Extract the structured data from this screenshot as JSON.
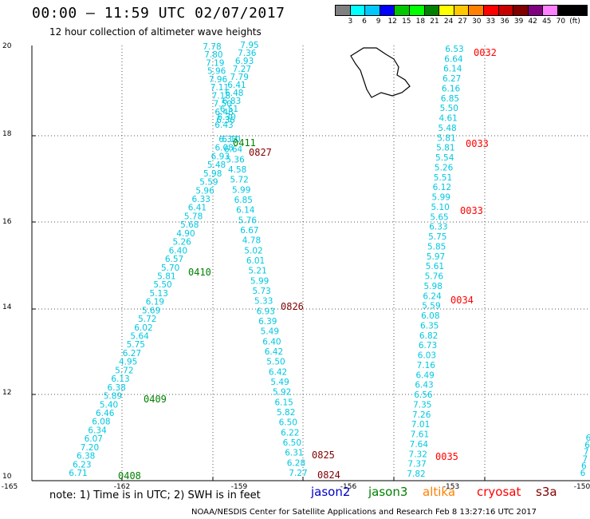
{
  "title": "00:00 – 11:59 UTC 02/07/2017",
  "subtitle": "12 hour collection of altimeter wave heights",
  "legend": {
    "unit": "(ft)",
    "levels": [
      "3",
      "6",
      "9",
      "12",
      "15",
      "18",
      "21",
      "24",
      "27",
      "30",
      "33",
      "36",
      "39",
      "42",
      "45",
      "70"
    ],
    "colors": [
      "#808080",
      "#00ffff",
      "#00c8ff",
      "#0000ff",
      "#00c800",
      "#00ff00",
      "#008000",
      "#ffff00",
      "#ffc800",
      "#ff8000",
      "#ff0000",
      "#c80000",
      "#800000",
      "#800080",
      "#ff80ff",
      "#000000",
      "#000000"
    ]
  },
  "axes": {
    "lon_labels": [
      "-165",
      "-162",
      "-159",
      "-156",
      "-153",
      "-150"
    ],
    "lat_labels": [
      "10",
      "12",
      "14",
      "16",
      "18",
      "20"
    ]
  },
  "colors": {
    "swh": "#00c8e0",
    "jason2": "#0000c8",
    "jason3": "#008000",
    "altika": "#ff8000",
    "cryosat": "#ff0000",
    "s3a": "#800000"
  },
  "tracks": [
    {
      "name": "track-a",
      "values": [
        "6.71",
        "6.23",
        "6.38",
        "7.20",
        "6.07",
        "6.34",
        "6.08",
        "6.46",
        "5.40",
        "5.89",
        "6.38",
        "6.13",
        "5.72",
        "4.95",
        "6.27",
        "5.75",
        "5.64",
        "6.02",
        "5.72",
        "5.69",
        "6.19",
        "5.13",
        "5.50",
        "5.81",
        "5.70",
        "6.57",
        "6.40",
        "5.26",
        "4.90",
        "5.68",
        "5.78",
        "6.41",
        "6.33",
        "5.96",
        "5.59",
        "5.98",
        "5.48",
        "6.93",
        "6.08",
        "6.33"
      ]
    },
    {
      "name": "track-b",
      "values": [
        "7.27",
        "6.28",
        "6.31",
        "6.50",
        "6.22",
        "6.50",
        "5.82",
        "6.15",
        "5.92",
        "5.49",
        "6.42",
        "5.50",
        "6.42",
        "6.40",
        "5.49",
        "6.39",
        "6.93",
        "5.33",
        "5.73",
        "5.99",
        "5.21",
        "6.01",
        "5.02",
        "4.78",
        "6.67",
        "5.76",
        "6.14",
        "6.85",
        "5.99",
        "5.72",
        "4.58",
        "5.36",
        "6.64",
        "6.10"
      ]
    },
    {
      "name": "track-c",
      "values": [
        "7.95",
        "7.36",
        "6.93",
        "7.27",
        "7.79",
        "6.41",
        "6.48",
        "6.83",
        "6.51",
        "6.30",
        "6.43"
      ]
    },
    {
      "name": "track-d",
      "values": [
        "7.78",
        "7.80",
        "7.19",
        "5.96",
        "7.96",
        "7.11",
        "7.18",
        "7.50",
        "6.48",
        "6.36"
      ]
    },
    {
      "name": "track-e",
      "values": [
        "7.82",
        "7.37",
        "7.32",
        "7.64",
        "7.61",
        "7.01",
        "7.26",
        "7.35",
        "6.56",
        "6.43",
        "6.49",
        "7.16",
        "6.03",
        "6.73",
        "6.82",
        "6.35",
        "6.08",
        "5.59",
        "6.24",
        "5.98",
        "5.76",
        "5.61",
        "5.97",
        "5.85",
        "5.75",
        "6.33",
        "5.65",
        "5.10",
        "5.99",
        "6.12",
        "5.51",
        "5.26",
        "5.54",
        "5.81",
        "5.81",
        "5.48",
        "4.61",
        "5.50",
        "6.85",
        "6.16",
        "6.27",
        "6.14",
        "6.64",
        "6.53"
      ]
    },
    {
      "name": "track-f",
      "values": [
        "6",
        "6",
        "7",
        "7",
        "6",
        "6"
      ]
    }
  ],
  "time_labels": [
    {
      "text": "0408",
      "sat": "jason3"
    },
    {
      "text": "0409",
      "sat": "jason3"
    },
    {
      "text": "0410",
      "sat": "jason3"
    },
    {
      "text": "0411",
      "sat": "jason3"
    },
    {
      "text": "0824",
      "sat": "s3a"
    },
    {
      "text": "0825",
      "sat": "s3a"
    },
    {
      "text": "0826",
      "sat": "s3a"
    },
    {
      "text": "0827",
      "sat": "s3a"
    },
    {
      "text": "0032",
      "sat": "cryosat"
    },
    {
      "text": "0033",
      "sat": "cryosat"
    },
    {
      "text": "0033",
      "sat": "cryosat"
    },
    {
      "text": "0034",
      "sat": "cryosat"
    },
    {
      "text": "0035",
      "sat": "cryosat"
    }
  ],
  "satellites": [
    {
      "name": "jason2",
      "color": "#0000c8"
    },
    {
      "name": "jason3",
      "color": "#008000"
    },
    {
      "name": "altika",
      "color": "#ff8000"
    },
    {
      "name": "cryosat",
      "color": "#ff0000"
    },
    {
      "name": "s3a",
      "color": "#800000"
    }
  ],
  "note": "note: 1) Time is in UTC; 2) SWH is in feet",
  "credit": "NOAA/NESDIS Center for Satellite Applications and Research    Feb  8 13:27:16 UTC 2017"
}
